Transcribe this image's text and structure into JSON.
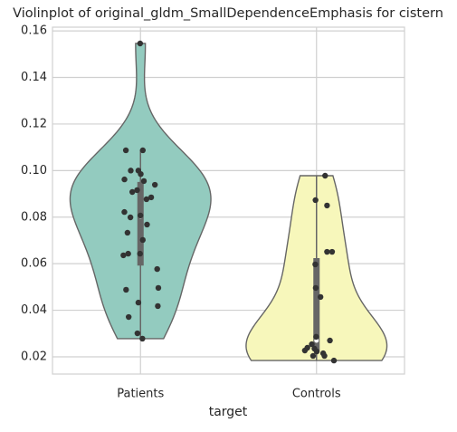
{
  "chart_data": {
    "type": "violin",
    "title": "Violinplot of original_gldm_SmallDependenceEmphasis for cistern",
    "x_label": "target",
    "categories": [
      "Patients",
      "Controls"
    ],
    "series": [
      {
        "name": "Patients",
        "color": "#93cbbf",
        "values": [
          0.1546,
          0.1087,
          0.1087,
          0.1,
          0.1,
          0.0985,
          0.0962,
          0.0939,
          0.0955,
          0.0916,
          0.0908,
          0.0885,
          0.0877,
          0.0822,
          0.0807,
          0.0799,
          0.0768,
          0.0733,
          0.0702,
          0.0643,
          0.0643,
          0.0636,
          0.0577,
          0.0496,
          0.0488,
          0.0433,
          0.0418,
          0.0371,
          0.0301,
          0.0278
        ]
      },
      {
        "name": "Controls",
        "color": "#f7f7bb",
        "values": [
          0.0978,
          0.0873,
          0.085,
          0.0651,
          0.0651,
          0.0597,
          0.0496,
          0.0457,
          0.0286,
          0.027,
          0.0254,
          0.0239,
          0.0235,
          0.0223,
          0.0227,
          0.0215,
          0.0204,
          0.0204,
          0.0184
        ]
      }
    ],
    "point_color": "#333333",
    "ylim": [
      0.0126,
      0.1616
    ],
    "yticks": [
      0.02,
      0.04,
      0.06,
      0.08,
      {
        "value": 0.1,
        "label": "0.10"
      },
      0.12,
      0.14,
      0.16
    ],
    "grid": true
  }
}
